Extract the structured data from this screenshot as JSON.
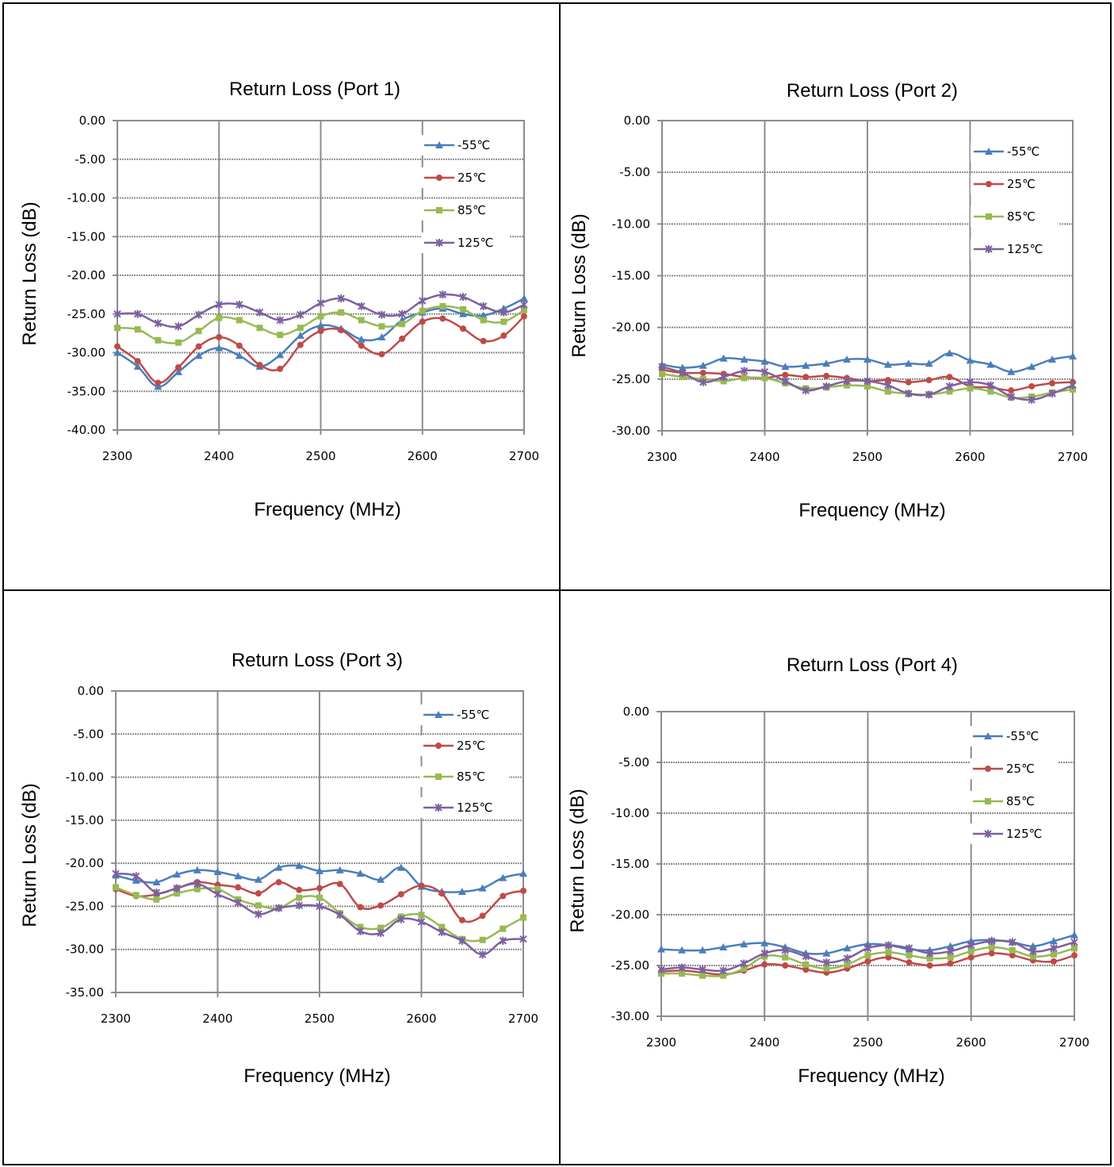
{
  "chart_data": [
    {
      "type": "line",
      "title": "Return Loss (Port 1)",
      "xlabel": "Frequency (MHz)",
      "ylabel": "Return Loss (dB)",
      "xlim": [
        2300,
        2700
      ],
      "ylim": [
        -40,
        0
      ],
      "xticks": [
        "2300",
        "2400",
        "2500",
        "2600",
        "2700"
      ],
      "yticks": [
        "0.00",
        "-5.00",
        "-10.00",
        "-15.00",
        "-20.00",
        "-25.00",
        "-30.00",
        "-35.00",
        "-40.00"
      ],
      "grid": true,
      "legend": "top-right",
      "x": [
        2300,
        2320,
        2340,
        2360,
        2380,
        2400,
        2420,
        2440,
        2460,
        2480,
        2500,
        2520,
        2540,
        2560,
        2580,
        2600,
        2620,
        2640,
        2660,
        2680,
        2700
      ],
      "series": [
        {
          "name": "-55℃",
          "color": "#4a7ebb",
          "marker": "triangle",
          "values": [
            -30.0,
            -31.8,
            -34.4,
            -32.5,
            -30.4,
            -29.4,
            -30.4,
            -31.8,
            -30.3,
            -27.8,
            -26.5,
            -26.9,
            -28.3,
            -28.0,
            -25.8,
            -24.8,
            -24.3,
            -25.0,
            -25.2,
            -24.3,
            -23.0
          ]
        },
        {
          "name": "25℃",
          "color": "#be4b48",
          "marker": "circle",
          "values": [
            -29.2,
            -31.1,
            -33.9,
            -31.9,
            -29.2,
            -28.0,
            -29.1,
            -31.6,
            -32.1,
            -29.0,
            -27.2,
            -27.1,
            -29.1,
            -30.2,
            -28.2,
            -26.0,
            -25.6,
            -26.9,
            -28.5,
            -27.8,
            -25.3
          ]
        },
        {
          "name": "85℃",
          "color": "#98b954",
          "marker": "square",
          "values": [
            -26.8,
            -27.0,
            -28.4,
            -28.7,
            -27.2,
            -25.5,
            -25.8,
            -26.8,
            -27.7,
            -26.8,
            -25.3,
            -24.8,
            -25.8,
            -26.6,
            -26.3,
            -24.6,
            -24.0,
            -24.4,
            -25.8,
            -26.0,
            -24.5
          ]
        },
        {
          "name": "125℃",
          "color": "#7d60a0",
          "marker": "x",
          "values": [
            -25.0,
            -25.0,
            -26.2,
            -26.6,
            -25.1,
            -23.8,
            -23.8,
            -24.8,
            -25.8,
            -25.1,
            -23.6,
            -23.0,
            -24.0,
            -25.1,
            -25.0,
            -23.3,
            -22.5,
            -22.8,
            -24.0,
            -24.8,
            -23.8
          ]
        }
      ]
    },
    {
      "type": "line",
      "title": "Return Loss (Port 2)",
      "xlabel": "Frequency (MHz)",
      "ylabel": "Return Loss (dB)",
      "xlim": [
        2300,
        2700
      ],
      "ylim": [
        -30,
        0
      ],
      "xticks": [
        "2300",
        "2400",
        "2500",
        "2600",
        "2700"
      ],
      "yticks": [
        "0.00",
        "-5.00",
        "-10.00",
        "-15.00",
        "-20.00",
        "-25.00",
        "-30.00"
      ],
      "grid": true,
      "legend": "top-right",
      "x": [
        2300,
        2320,
        2340,
        2360,
        2380,
        2400,
        2420,
        2440,
        2460,
        2480,
        2500,
        2520,
        2540,
        2560,
        2580,
        2600,
        2620,
        2640,
        2660,
        2680,
        2700
      ],
      "series": [
        {
          "name": "-55℃",
          "color": "#4a7ebb",
          "marker": "triangle",
          "values": [
            -23.6,
            -23.9,
            -23.7,
            -23.0,
            -23.1,
            -23.3,
            -23.8,
            -23.7,
            -23.5,
            -23.1,
            -23.1,
            -23.6,
            -23.5,
            -23.5,
            -22.5,
            -23.2,
            -23.6,
            -24.3,
            -23.8,
            -23.1,
            -22.8
          ]
        },
        {
          "name": "25℃",
          "color": "#be4b48",
          "marker": "circle",
          "values": [
            -24.1,
            -24.4,
            -24.4,
            -24.5,
            -24.8,
            -24.9,
            -24.6,
            -24.8,
            -24.7,
            -24.9,
            -25.2,
            -25.1,
            -25.3,
            -25.1,
            -24.8,
            -25.7,
            -25.8,
            -26.1,
            -25.7,
            -25.4,
            -25.3
          ]
        },
        {
          "name": "85℃",
          "color": "#98b954",
          "marker": "square",
          "values": [
            -24.5,
            -24.8,
            -25.0,
            -25.2,
            -24.9,
            -24.9,
            -25.4,
            -25.9,
            -25.8,
            -25.6,
            -25.7,
            -26.2,
            -26.4,
            -26.5,
            -26.2,
            -25.9,
            -26.2,
            -26.8,
            -26.7,
            -26.3,
            -26.0
          ]
        },
        {
          "name": "125℃",
          "color": "#7d60a0",
          "marker": "x",
          "values": [
            -23.8,
            -24.4,
            -25.3,
            -24.8,
            -24.2,
            -24.3,
            -25.2,
            -26.1,
            -25.7,
            -25.2,
            -25.2,
            -25.6,
            -26.4,
            -26.5,
            -25.7,
            -25.3,
            -25.6,
            -26.7,
            -27.0,
            -26.4,
            -25.6
          ]
        }
      ]
    },
    {
      "type": "line",
      "title": "Return Loss (Port 3)",
      "xlabel": "Frequency (MHz)",
      "ylabel": "Return Loss (dB)",
      "xlim": [
        2300,
        2700
      ],
      "ylim": [
        -35,
        0
      ],
      "xticks": [
        "2300",
        "2400",
        "2500",
        "2600",
        "2700"
      ],
      "yticks": [
        "0.00",
        "-5.00",
        "-10.00",
        "-15.00",
        "-20.00",
        "-25.00",
        "-30.00",
        "-35.00"
      ],
      "grid": true,
      "legend": "top-right",
      "x": [
        2300,
        2320,
        2340,
        2360,
        2380,
        2400,
        2420,
        2440,
        2460,
        2480,
        2500,
        2520,
        2540,
        2560,
        2580,
        2600,
        2620,
        2640,
        2660,
        2680,
        2700
      ],
      "series": [
        {
          "name": "-55℃",
          "color": "#4a7ebb",
          "marker": "triangle",
          "values": [
            -21.4,
            -22.0,
            -22.2,
            -21.3,
            -20.8,
            -21.0,
            -21.5,
            -21.9,
            -20.5,
            -20.3,
            -20.9,
            -20.8,
            -21.2,
            -21.9,
            -20.5,
            -22.7,
            -23.3,
            -23.3,
            -22.9,
            -21.7,
            -21.2
          ]
        },
        {
          "name": "25℃",
          "color": "#be4b48",
          "marker": "circle",
          "values": [
            -23.0,
            -23.8,
            -23.6,
            -22.9,
            -22.2,
            -22.5,
            -22.8,
            -23.5,
            -22.2,
            -23.1,
            -22.9,
            -22.4,
            -25.1,
            -24.9,
            -23.6,
            -22.6,
            -23.5,
            -26.6,
            -26.1,
            -23.8,
            -23.2
          ]
        },
        {
          "name": "85℃",
          "color": "#98b954",
          "marker": "square",
          "values": [
            -22.8,
            -23.7,
            -24.2,
            -23.5,
            -23.0,
            -23.0,
            -24.2,
            -24.9,
            -25.2,
            -24.0,
            -24.0,
            -25.8,
            -27.4,
            -27.5,
            -26.2,
            -26.0,
            -27.4,
            -28.8,
            -28.9,
            -27.6,
            -26.3
          ]
        },
        {
          "name": "125℃",
          "color": "#7d60a0",
          "marker": "x",
          "values": [
            -21.2,
            -21.5,
            -23.4,
            -22.9,
            -22.4,
            -23.6,
            -24.6,
            -25.9,
            -25.2,
            -24.9,
            -25.0,
            -26.0,
            -27.9,
            -28.1,
            -26.5,
            -26.8,
            -28.0,
            -29.0,
            -30.6,
            -29.0,
            -28.8
          ]
        }
      ]
    },
    {
      "type": "line",
      "title": "Return Loss (Port 4)",
      "xlabel": "Frequency (MHz)",
      "ylabel": "Return Loss (dB)",
      "xlim": [
        2300,
        2700
      ],
      "ylim": [
        -30,
        0
      ],
      "xticks": [
        "2300",
        "2400",
        "2500",
        "2600",
        "2700"
      ],
      "yticks": [
        "0.00",
        "-5.00",
        "-10.00",
        "-15.00",
        "-20.00",
        "-25.00",
        "-30.00"
      ],
      "grid": true,
      "legend": "top-right",
      "x": [
        2300,
        2320,
        2340,
        2360,
        2380,
        2400,
        2420,
        2440,
        2460,
        2480,
        2500,
        2520,
        2540,
        2560,
        2580,
        2600,
        2620,
        2640,
        2660,
        2680,
        2700
      ],
      "series": [
        {
          "name": "-55℃",
          "color": "#4a7ebb",
          "marker": "triangle",
          "values": [
            -23.4,
            -23.5,
            -23.5,
            -23.2,
            -22.9,
            -22.8,
            -23.2,
            -23.8,
            -23.8,
            -23.3,
            -22.9,
            -23.0,
            -23.4,
            -23.5,
            -23.1,
            -22.6,
            -22.5,
            -22.7,
            -23.1,
            -22.6,
            -22.0
          ]
        },
        {
          "name": "25℃",
          "color": "#be4b48",
          "marker": "circle",
          "values": [
            -25.6,
            -25.5,
            -25.7,
            -25.9,
            -25.5,
            -24.9,
            -25.0,
            -25.4,
            -25.7,
            -25.3,
            -24.6,
            -24.2,
            -24.7,
            -25.0,
            -24.8,
            -24.2,
            -23.8,
            -24.0,
            -24.5,
            -24.6,
            -24.0
          ]
        },
        {
          "name": "85℃",
          "color": "#98b954",
          "marker": "square",
          "values": [
            -25.8,
            -25.8,
            -26.0,
            -26.0,
            -25.3,
            -24.1,
            -24.2,
            -24.9,
            -25.3,
            -24.9,
            -24.0,
            -23.7,
            -24.0,
            -24.3,
            -24.2,
            -23.6,
            -23.2,
            -23.5,
            -24.1,
            -23.9,
            -23.3
          ]
        },
        {
          "name": "125℃",
          "color": "#7d60a0",
          "marker": "x",
          "values": [
            -25.4,
            -25.2,
            -25.4,
            -25.5,
            -24.8,
            -23.8,
            -23.5,
            -24.1,
            -24.7,
            -24.3,
            -23.3,
            -23.0,
            -23.3,
            -23.8,
            -23.6,
            -23.0,
            -22.6,
            -22.7,
            -23.6,
            -23.3,
            -22.7
          ]
        }
      ]
    }
  ]
}
